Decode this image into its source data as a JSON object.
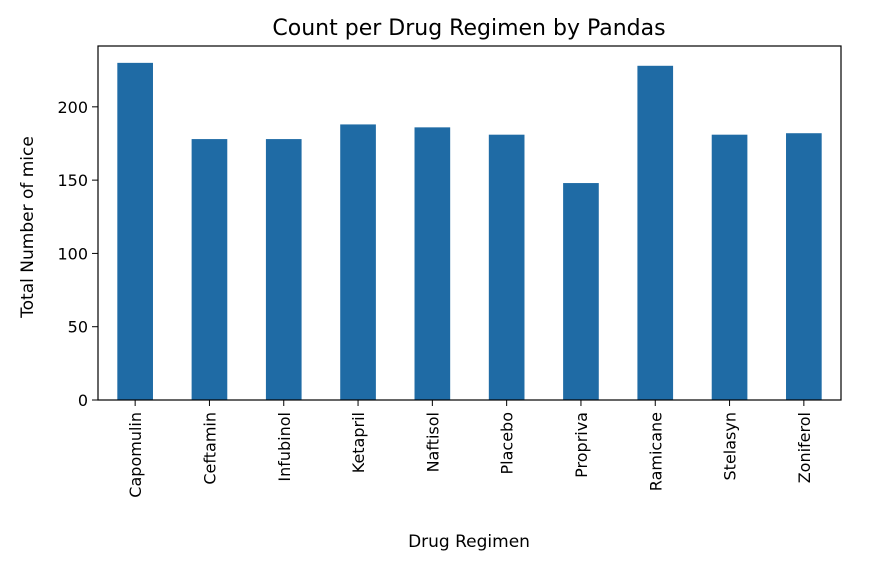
{
  "chart_data": {
    "type": "bar",
    "title": "Count per Drug Regimen by Pandas",
    "xlabel": "Drug Regimen",
    "ylabel": "Total Number of mice",
    "categories": [
      "Capomulin",
      "Ceftamin",
      "Infubinol",
      "Ketapril",
      "Naftisol",
      "Placebo",
      "Propriva",
      "Ramicane",
      "Stelasyn",
      "Zoniferol"
    ],
    "values": [
      230,
      178,
      178,
      188,
      186,
      181,
      148,
      228,
      181,
      182
    ],
    "ylim": [
      0,
      241.5
    ],
    "yticks": [
      0,
      50,
      100,
      150,
      200
    ],
    "bar_color": "#1f6ba5",
    "grid": false,
    "legend": false
  }
}
